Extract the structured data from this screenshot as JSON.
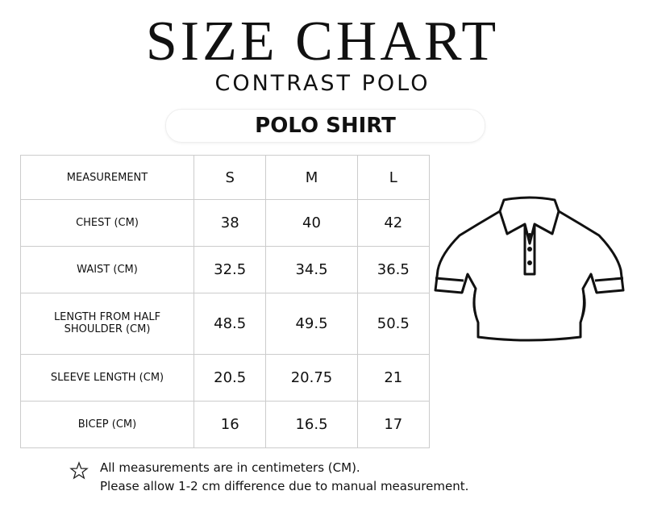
{
  "header": {
    "title": "SIZE CHART",
    "subtitle": "CONTRAST POLO",
    "product": "POLO SHIRT"
  },
  "table": {
    "columns": [
      "MEASUREMENT",
      "S",
      "M",
      "L"
    ],
    "rows": [
      [
        "CHEST (CM)",
        "38",
        "40",
        "42"
      ],
      [
        "WAIST (CM)",
        "32.5",
        "34.5",
        "36.5"
      ],
      [
        "LENGTH FROM HALF SHOULDER (CM)",
        "48.5",
        "49.5",
        "50.5"
      ],
      [
        "SLEEVE LENGTH (CM)",
        "20.5",
        "20.75",
        "21"
      ],
      [
        "BICEP (CM)",
        "16",
        "16.5",
        "17"
      ]
    ]
  },
  "notes": [
    "All measurements are in centimeters (CM).",
    "Please allow 1-2 cm difference due to manual measurement."
  ]
}
